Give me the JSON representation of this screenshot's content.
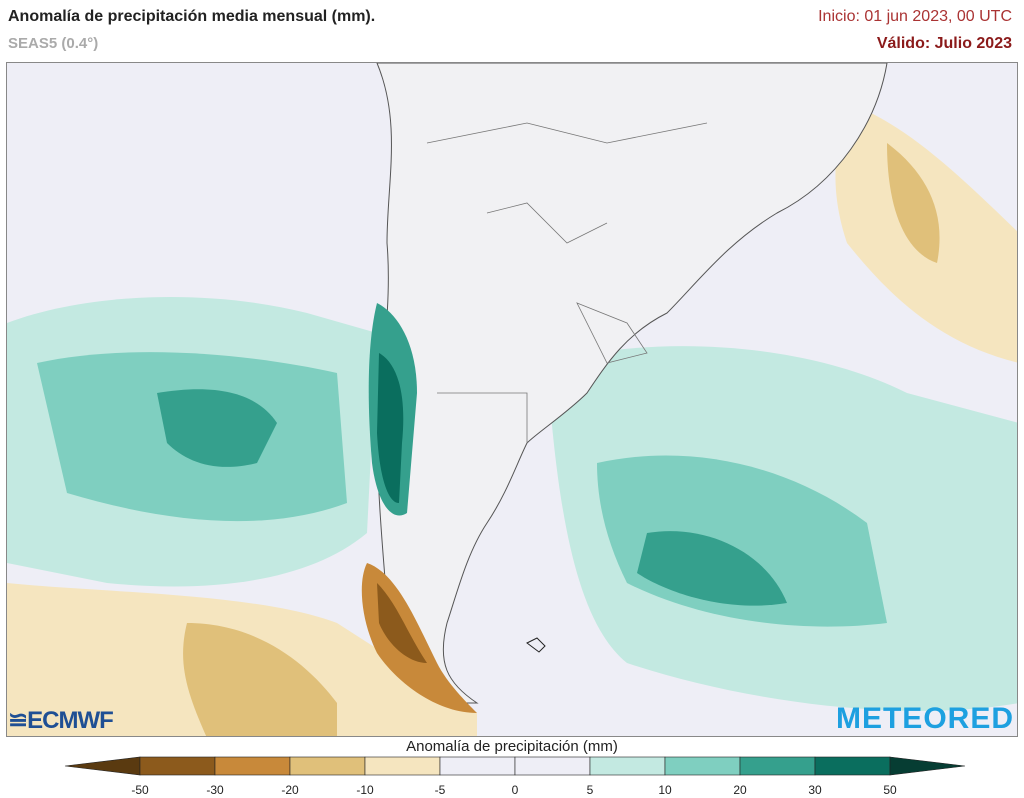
{
  "header": {
    "title": "Anomalía de precipitación media mensual (mm).",
    "model": "SEAS5 (0.4°)",
    "init": "Inicio: 01 jun 2023, 00 UTC",
    "valid": "Válido: Julio 2023"
  },
  "logos": {
    "left": "ECMWF",
    "right": "METEORED"
  },
  "colorbar": {
    "title": "Anomalía de precipitación (mm)",
    "ticks": [
      "-50",
      "-30",
      "-20",
      "-10",
      "-5",
      "0",
      "5",
      "10",
      "20",
      "30",
      "50"
    ],
    "colors": [
      "#5a3a10",
      "#8c5a1c",
      "#c8893a",
      "#e0c07a",
      "#f5e5bf",
      "#eeeef6",
      "#eeeef6",
      "#c3e9e1",
      "#7fcfc0",
      "#35a08d",
      "#0a6e5e",
      "#063d33"
    ]
  }
}
